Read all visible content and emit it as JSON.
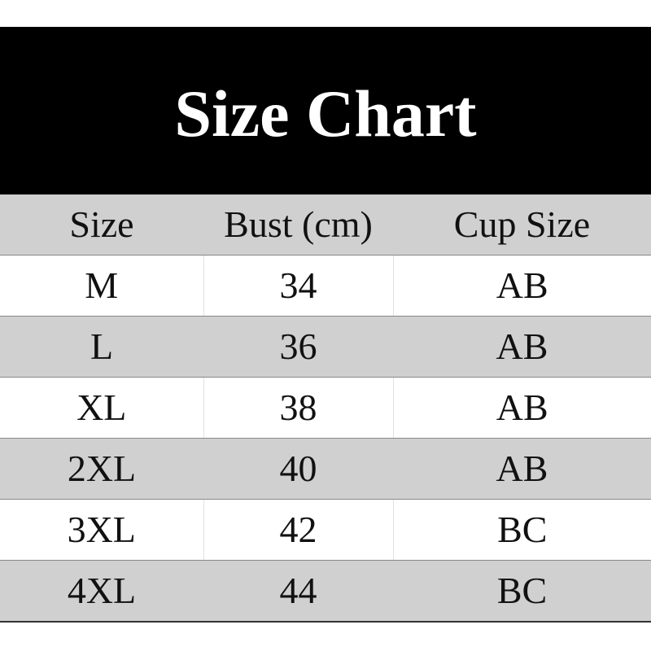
{
  "title": "Size Chart",
  "table": {
    "headers": [
      "Size",
      "Bust (cm)",
      "Cup Size"
    ],
    "rows": [
      [
        "M",
        "34",
        "AB"
      ],
      [
        "L",
        "36",
        "AB"
      ],
      [
        "XL",
        "38",
        "AB"
      ],
      [
        "2XL",
        "40",
        "AB"
      ],
      [
        "3XL",
        "42",
        "BC"
      ],
      [
        "4XL",
        "44",
        "BC"
      ]
    ]
  },
  "colors": {
    "banner": "#000000",
    "stripe": "#d0d0d0",
    "text": "#111111"
  }
}
